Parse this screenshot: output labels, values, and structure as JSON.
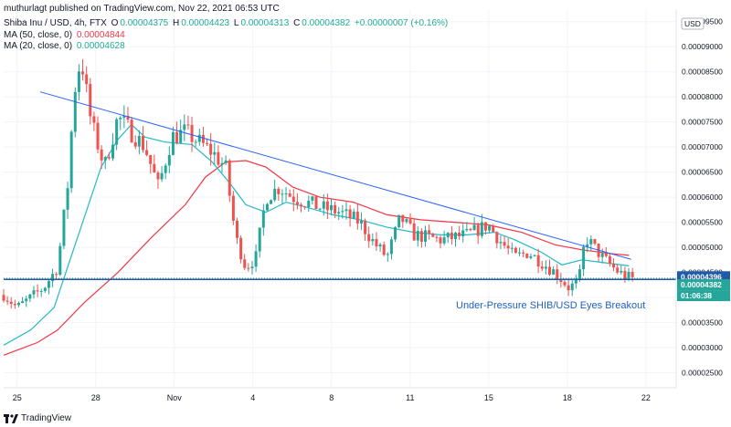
{
  "header": {
    "publisher": "muthurlagt published on TradingView.com, Nov 22, 2021 06:53 UTC",
    "symbol_line": {
      "symbol": "Shiba Inu / USD, 4h, FTX",
      "o_label": "O",
      "o": "0.00004375",
      "h_label": "H",
      "h": "0.00004423",
      "l_label": "L",
      "l": "0.00004313",
      "c_label": "C",
      "c": "0.00004382",
      "change": "+0.00000007 (+0.16%)"
    },
    "ma50": {
      "label": "MA (50, close, 0)",
      "value": "0.00004844",
      "color": "#f23645"
    },
    "ma20": {
      "label": "MA (20, close, 0)",
      "value": "0.00004628",
      "color": "#22ab94"
    }
  },
  "currency": "USD",
  "footer": {
    "brand": "TradingView"
  },
  "colors": {
    "up": "#26a69a",
    "down": "#ef5350",
    "trendline": "#2962ff",
    "support": "#1e5aa8",
    "ma50": "#f23645",
    "ma20": "#22b8c8",
    "price_tag": "#26a69a",
    "ma_tag": "#1e5aa8"
  },
  "chart_data": {
    "type": "candlestick",
    "title": "Shiba Inu / USD, 4h, FTX",
    "x_axis_labels": [
      "25",
      "28",
      "Nov",
      "4",
      "8",
      "11",
      "15",
      "18",
      "22"
    ],
    "y_axis_labels": [
      "0.00009500",
      "0.00009000",
      "0.00008500",
      "0.00008000",
      "0.00007500",
      "0.00007000",
      "0.00006500",
      "0.00006000",
      "0.00005500",
      "0.00005000",
      "0.00004500",
      "0.00004000",
      "0.00003500",
      "0.00003000",
      "0.00002500"
    ],
    "ylim": [
      2.2e-05,
      9.75e-05
    ],
    "price_tags": [
      {
        "label": "0.00004396",
        "value": 4.396e-05,
        "kind": "ma"
      },
      {
        "label": "0.00004382",
        "value": 4.382e-05,
        "kind": "price"
      },
      {
        "label": "01:06:38",
        "kind": "countdown"
      }
    ],
    "annotation": "Under-Pressure SHIB/USD Eyes Breakout",
    "trendline": [
      [
        0.0545,
        8.1e-05
      ],
      [
        0.933,
        4.76e-05
      ]
    ],
    "support": 4.36e-05,
    "ma50_points": [
      [
        0.0,
        2.85e-05
      ],
      [
        0.05,
        3.1e-05
      ],
      [
        0.08,
        3.35e-05
      ],
      [
        0.12,
        3.9e-05
      ],
      [
        0.17,
        4.5e-05
      ],
      [
        0.22,
        5.2e-05
      ],
      [
        0.27,
        5.85e-05
      ],
      [
        0.3,
        6.4e-05
      ],
      [
        0.33,
        6.7e-05
      ],
      [
        0.36,
        6.73e-05
      ],
      [
        0.39,
        6.6e-05
      ],
      [
        0.43,
        6.2e-05
      ],
      [
        0.47,
        6e-05
      ],
      [
        0.52,
        5.9e-05
      ],
      [
        0.57,
        5.65e-05
      ],
      [
        0.62,
        5.55e-05
      ],
      [
        0.67,
        5.5e-05
      ],
      [
        0.72,
        5.45e-05
      ],
      [
        0.77,
        5.3e-05
      ],
      [
        0.82,
        5.05e-05
      ],
      [
        0.86,
        4.95e-05
      ],
      [
        0.9,
        4.88e-05
      ],
      [
        0.93,
        4.84e-05
      ]
    ],
    "ma20_points": [
      [
        0.0,
        3.05e-05
      ],
      [
        0.04,
        3.35e-05
      ],
      [
        0.075,
        3.8e-05
      ],
      [
        0.1,
        4.8e-05
      ],
      [
        0.125,
        5.8e-05
      ],
      [
        0.145,
        6.6e-05
      ],
      [
        0.17,
        7.15e-05
      ],
      [
        0.19,
        7.45e-05
      ],
      [
        0.21,
        7.2e-05
      ],
      [
        0.24,
        7.1e-05
      ],
      [
        0.28,
        7.05e-05
      ],
      [
        0.31,
        6.7e-05
      ],
      [
        0.335,
        6.3e-05
      ],
      [
        0.36,
        5.85e-05
      ],
      [
        0.39,
        5.7e-05
      ],
      [
        0.42,
        5.9e-05
      ],
      [
        0.45,
        5.8e-05
      ],
      [
        0.49,
        5.65e-05
      ],
      [
        0.53,
        5.55e-05
      ],
      [
        0.57,
        5.4e-05
      ],
      [
        0.61,
        5.3e-05
      ],
      [
        0.65,
        5.25e-05
      ],
      [
        0.69,
        5.25e-05
      ],
      [
        0.73,
        5.3e-05
      ],
      [
        0.76,
        5.15e-05
      ],
      [
        0.8,
        4.9e-05
      ],
      [
        0.83,
        4.65e-05
      ],
      [
        0.86,
        4.75e-05
      ],
      [
        0.89,
        4.7e-05
      ],
      [
        0.93,
        4.63e-05
      ]
    ],
    "candle_anchors": [
      [
        0.0,
        4.05e-05
      ],
      [
        0.02,
        3.8e-05
      ],
      [
        0.04,
        4e-05
      ],
      [
        0.06,
        4.2e-05
      ],
      [
        0.08,
        4.6e-05
      ],
      [
        0.095,
        6.2e-05
      ],
      [
        0.105,
        8.1e-05
      ],
      [
        0.115,
        8.8e-05
      ],
      [
        0.13,
        7.5e-05
      ],
      [
        0.15,
        6.6e-05
      ],
      [
        0.17,
        7.6e-05
      ],
      [
        0.19,
        7.3e-05
      ],
      [
        0.21,
        7e-05
      ],
      [
        0.23,
        6.2e-05
      ],
      [
        0.25,
        7.2e-05
      ],
      [
        0.27,
        7.3e-05
      ],
      [
        0.29,
        7.1e-05
      ],
      [
        0.31,
        6.9e-05
      ],
      [
        0.33,
        6.6e-05
      ],
      [
        0.345,
        5.2e-05
      ],
      [
        0.36,
        4.6e-05
      ],
      [
        0.375,
        4.8e-05
      ],
      [
        0.39,
        6e-05
      ],
      [
        0.41,
        6.2e-05
      ],
      [
        0.43,
        6e-05
      ],
      [
        0.47,
        5.8e-05
      ],
      [
        0.5,
        5.7e-05
      ],
      [
        0.53,
        5.5e-05
      ],
      [
        0.55,
        5.1e-05
      ],
      [
        0.57,
        4.8e-05
      ],
      [
        0.59,
        5.6e-05
      ],
      [
        0.61,
        5.25e-05
      ],
      [
        0.65,
        5.15e-05
      ],
      [
        0.69,
        5.25e-05
      ],
      [
        0.72,
        5.45e-05
      ],
      [
        0.74,
        5.1e-05
      ],
      [
        0.76,
        4.8e-05
      ],
      [
        0.78,
        4.9e-05
      ],
      [
        0.8,
        4.7e-05
      ],
      [
        0.82,
        4.5e-05
      ],
      [
        0.84,
        4.2e-05
      ],
      [
        0.855,
        4.3e-05
      ],
      [
        0.865,
        5.2e-05
      ],
      [
        0.875,
        5.05e-05
      ],
      [
        0.89,
        4.8e-05
      ],
      [
        0.91,
        4.55e-05
      ],
      [
        0.925,
        4.42e-05
      ],
      [
        0.935,
        4.38e-05
      ]
    ]
  }
}
